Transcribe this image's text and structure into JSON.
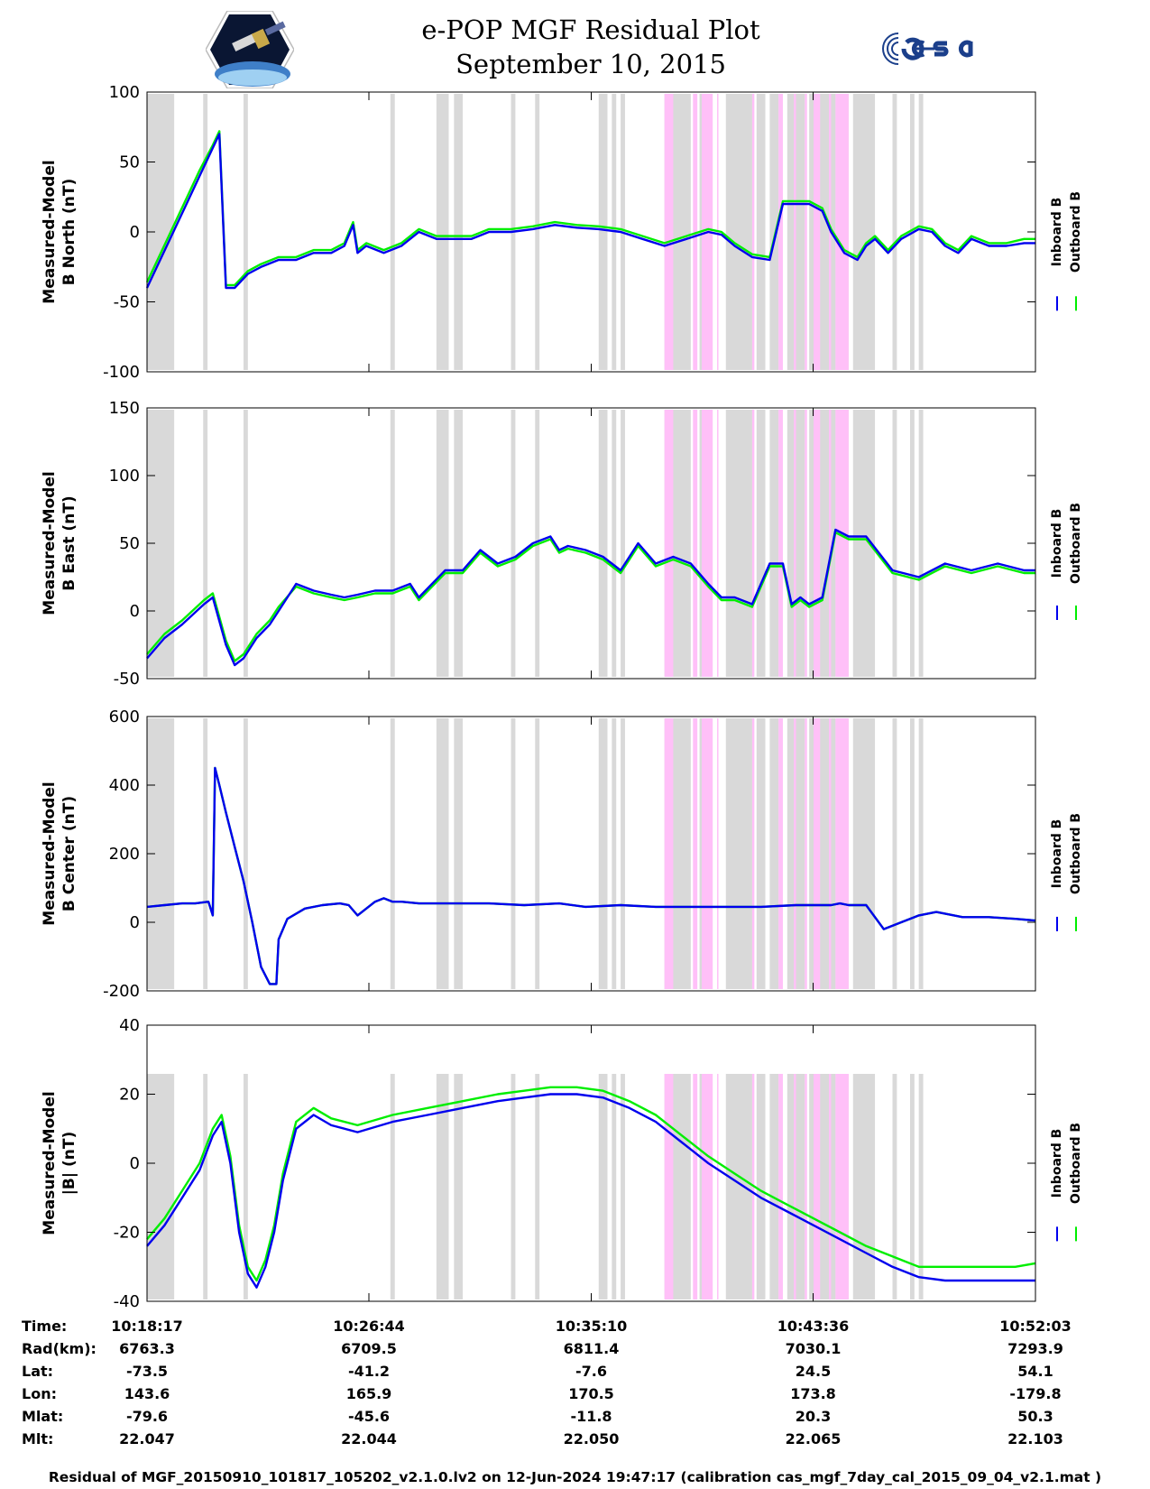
{
  "title_line1": "e-POP MGF Residual Plot",
  "title_line2": "September 10, 2015",
  "colors": {
    "inboard": "#0000ee",
    "outboard": "#00ee00",
    "gray_band": "#d9d9d9",
    "pink_band": "#ffc0f8"
  },
  "legend": {
    "inboard": "Inboard B",
    "outboard": "Outboard B"
  },
  "chart_data": [
    {
      "type": "line",
      "ylabel": [
        "Measured-Model",
        "B North (nT)"
      ],
      "ylim": [
        -100,
        100
      ],
      "yticks": [
        100,
        50,
        0,
        -50,
        -100
      ],
      "xlim": [
        0,
        2026
      ],
      "series": [
        {
          "name": "Inboard B",
          "x": [
            0,
            30,
            60,
            90,
            120,
            150,
            165,
            180,
            200,
            230,
            260,
            300,
            340,
            380,
            420,
            450,
            470,
            480,
            500,
            540,
            580,
            620,
            660,
            700,
            740,
            780,
            830,
            880,
            930,
            980,
            1030,
            1080,
            1130,
            1180,
            1230,
            1280,
            1310,
            1340,
            1380,
            1420,
            1450,
            1480,
            1510,
            1540,
            1560,
            1590,
            1620,
            1640,
            1660,
            1690,
            1720,
            1760,
            1790,
            1820,
            1850,
            1880,
            1920,
            1960,
            2000,
            2026
          ],
          "y": [
            -40,
            -20,
            0,
            20,
            40,
            60,
            70,
            -40,
            -40,
            -30,
            -25,
            -20,
            -20,
            -15,
            -15,
            -10,
            5,
            -15,
            -10,
            -15,
            -10,
            0,
            -5,
            -5,
            -5,
            0,
            0,
            2,
            5,
            3,
            2,
            0,
            -5,
            -10,
            -5,
            0,
            -2,
            -10,
            -18,
            -20,
            20,
            20,
            20,
            15,
            0,
            -15,
            -20,
            -10,
            -5,
            -15,
            -5,
            2,
            0,
            -10,
            -15,
            -5,
            -10,
            -10,
            -8,
            -8
          ]
        },
        {
          "name": "Outboard B",
          "x": [
            0,
            30,
            60,
            90,
            120,
            150,
            165,
            180,
            200,
            230,
            260,
            300,
            340,
            380,
            420,
            450,
            470,
            480,
            500,
            540,
            580,
            620,
            660,
            700,
            740,
            780,
            830,
            880,
            930,
            980,
            1030,
            1080,
            1130,
            1180,
            1230,
            1280,
            1310,
            1340,
            1380,
            1420,
            1450,
            1480,
            1510,
            1540,
            1560,
            1590,
            1620,
            1640,
            1660,
            1690,
            1720,
            1760,
            1790,
            1820,
            1850,
            1880,
            1920,
            1960,
            2000,
            2026
          ],
          "y": [
            -36,
            -16,
            4,
            24,
            44,
            62,
            72,
            -38,
            -38,
            -28,
            -23,
            -18,
            -18,
            -13,
            -13,
            -8,
            7,
            -13,
            -8,
            -13,
            -8,
            2,
            -3,
            -3,
            -3,
            2,
            2,
            4,
            7,
            5,
            4,
            2,
            -3,
            -8,
            -3,
            2,
            0,
            -8,
            -16,
            -18,
            22,
            22,
            22,
            17,
            2,
            -13,
            -18,
            -8,
            -3,
            -13,
            -3,
            4,
            2,
            -8,
            -13,
            -3,
            -8,
            -8,
            -5,
            -5
          ]
        }
      ]
    },
    {
      "type": "line",
      "ylabel": [
        "Measured-Model",
        "B East (nT)"
      ],
      "ylim": [
        -50,
        150
      ],
      "yticks": [
        150,
        100,
        50,
        0,
        -50
      ],
      "xlim": [
        0,
        2026
      ],
      "series": [
        {
          "name": "Inboard B",
          "x": [
            0,
            40,
            80,
            130,
            150,
            180,
            200,
            220,
            250,
            280,
            300,
            340,
            380,
            420,
            450,
            480,
            520,
            560,
            600,
            620,
            650,
            680,
            720,
            760,
            800,
            840,
            880,
            920,
            940,
            960,
            1000,
            1040,
            1080,
            1120,
            1160,
            1200,
            1240,
            1280,
            1310,
            1340,
            1380,
            1420,
            1450,
            1470,
            1490,
            1510,
            1540,
            1570,
            1600,
            1640,
            1700,
            1760,
            1820,
            1880,
            1940,
            2000,
            2026
          ],
          "y": [
            -35,
            -20,
            -10,
            5,
            10,
            -25,
            -40,
            -35,
            -20,
            -10,
            0,
            20,
            15,
            12,
            10,
            12,
            15,
            15,
            20,
            10,
            20,
            30,
            30,
            45,
            35,
            40,
            50,
            55,
            45,
            48,
            45,
            40,
            30,
            50,
            35,
            40,
            35,
            20,
            10,
            10,
            5,
            35,
            35,
            5,
            10,
            5,
            10,
            60,
            55,
            55,
            30,
            25,
            35,
            30,
            35,
            30,
            30
          ]
        },
        {
          "name": "Outboard B",
          "x": [
            0,
            40,
            80,
            130,
            150,
            180,
            200,
            220,
            250,
            280,
            300,
            340,
            380,
            420,
            450,
            480,
            520,
            560,
            600,
            620,
            650,
            680,
            720,
            760,
            800,
            840,
            880,
            920,
            940,
            960,
            1000,
            1040,
            1080,
            1120,
            1160,
            1200,
            1240,
            1280,
            1310,
            1340,
            1380,
            1420,
            1450,
            1470,
            1490,
            1510,
            1540,
            1570,
            1600,
            1640,
            1700,
            1760,
            1820,
            1880,
            1940,
            2000,
            2026
          ],
          "y": [
            -32,
            -17,
            -7,
            8,
            13,
            -22,
            -37,
            -32,
            -17,
            -7,
            3,
            18,
            13,
            10,
            8,
            10,
            13,
            13,
            18,
            8,
            18,
            28,
            28,
            43,
            33,
            38,
            48,
            53,
            43,
            46,
            43,
            38,
            28,
            48,
            33,
            38,
            33,
            18,
            8,
            8,
            3,
            33,
            33,
            3,
            8,
            3,
            8,
            58,
            53,
            53,
            28,
            23,
            33,
            28,
            33,
            28,
            28
          ]
        }
      ]
    },
    {
      "type": "line",
      "ylabel": [
        "Measured-Model",
        "B Center (nT)"
      ],
      "ylim": [
        -200,
        600
      ],
      "yticks": [
        600,
        400,
        200,
        0,
        -200
      ],
      "xlim": [
        0,
        2026
      ],
      "series": [
        {
          "name": "Inboard B",
          "x": [
            0,
            40,
            80,
            110,
            140,
            150,
            155,
            165,
            180,
            200,
            220,
            240,
            260,
            280,
            295,
            300,
            320,
            360,
            400,
            440,
            460,
            480,
            520,
            540,
            560,
            580,
            620,
            700,
            780,
            860,
            940,
            1000,
            1080,
            1160,
            1240,
            1320,
            1400,
            1480,
            1520,
            1540,
            1560,
            1580,
            1600,
            1640,
            1680,
            1720,
            1760,
            1800,
            1860,
            1920,
            1980,
            2026
          ],
          "y": [
            45,
            50,
            55,
            55,
            60,
            20,
            450,
            400,
            320,
            220,
            120,
            0,
            -130,
            -180,
            -180,
            -50,
            10,
            40,
            50,
            55,
            50,
            20,
            60,
            70,
            60,
            60,
            55,
            55,
            55,
            50,
            55,
            45,
            50,
            45,
            45,
            45,
            45,
            50,
            50,
            50,
            50,
            55,
            50,
            50,
            -20,
            0,
            20,
            30,
            15,
            15,
            10,
            5
          ]
        },
        {
          "name": "Outboard B",
          "x": [
            0,
            40,
            80,
            110,
            140,
            150,
            155,
            165,
            180,
            200,
            220,
            240,
            260,
            280,
            295,
            300,
            320,
            360,
            400,
            440,
            460,
            480,
            520,
            540,
            560,
            580,
            620,
            700,
            780,
            860,
            940,
            1000,
            1080,
            1160,
            1240,
            1320,
            1400,
            1480,
            1520,
            1540,
            1560,
            1580,
            1600,
            1640,
            1680,
            1720,
            1760,
            1800,
            1860,
            1920,
            1980,
            2026
          ],
          "y": [
            45,
            50,
            55,
            55,
            60,
            20,
            450,
            400,
            320,
            220,
            120,
            0,
            -130,
            -180,
            -180,
            -50,
            10,
            40,
            50,
            55,
            50,
            20,
            60,
            70,
            60,
            60,
            55,
            55,
            55,
            50,
            55,
            45,
            50,
            45,
            45,
            45,
            45,
            50,
            50,
            50,
            50,
            55,
            50,
            50,
            -20,
            0,
            20,
            30,
            15,
            15,
            10,
            5
          ]
        }
      ]
    },
    {
      "type": "line",
      "ylabel": [
        "Measured-Model",
        "|B| (nT)"
      ],
      "ylim": [
        -40,
        40
      ],
      "yticks": [
        40,
        20,
        0,
        -20,
        -40
      ],
      "xlim": [
        0,
        2026
      ],
      "series": [
        {
          "name": "Inboard B",
          "x": [
            0,
            40,
            80,
            120,
            150,
            170,
            190,
            210,
            230,
            250,
            270,
            290,
            310,
            340,
            380,
            420,
            480,
            560,
            640,
            720,
            800,
            860,
            920,
            980,
            1040,
            1100,
            1160,
            1220,
            1280,
            1340,
            1400,
            1460,
            1520,
            1580,
            1640,
            1700,
            1760,
            1820,
            1900,
            1980,
            2026
          ],
          "y": [
            -24,
            -18,
            -10,
            -2,
            8,
            12,
            0,
            -20,
            -32,
            -36,
            -30,
            -20,
            -5,
            10,
            14,
            11,
            9,
            12,
            14,
            16,
            18,
            19,
            20,
            20,
            19,
            16,
            12,
            6,
            0,
            -5,
            -10,
            -14,
            -18,
            -22,
            -26,
            -30,
            -33,
            -34,
            -34,
            -34,
            -34
          ]
        },
        {
          "name": "Outboard B",
          "x": [
            0,
            40,
            80,
            120,
            150,
            170,
            190,
            210,
            230,
            250,
            270,
            290,
            310,
            340,
            380,
            420,
            480,
            560,
            640,
            720,
            800,
            860,
            920,
            980,
            1040,
            1100,
            1160,
            1220,
            1280,
            1340,
            1400,
            1460,
            1520,
            1580,
            1640,
            1700,
            1760,
            1820,
            1900,
            1980,
            2026
          ],
          "y": [
            -22,
            -16,
            -8,
            0,
            10,
            14,
            2,
            -18,
            -30,
            -34,
            -28,
            -18,
            -3,
            12,
            16,
            13,
            11,
            14,
            16,
            18,
            20,
            21,
            22,
            22,
            21,
            18,
            14,
            8,
            2,
            -3,
            -8,
            -12,
            -16,
            -20,
            -24,
            -27,
            -30,
            -30,
            -30,
            -30,
            -29
          ]
        }
      ]
    }
  ],
  "bands": {
    "gray": [
      [
        0,
        62
      ],
      [
        128,
        138
      ],
      [
        220,
        230
      ],
      [
        555,
        565
      ],
      [
        660,
        688
      ],
      [
        700,
        720
      ],
      [
        830,
        840
      ],
      [
        885,
        895
      ],
      [
        1030,
        1050
      ],
      [
        1060,
        1070
      ],
      [
        1080,
        1090
      ],
      [
        1180,
        1240
      ],
      [
        1260,
        1276
      ],
      [
        1320,
        1380
      ],
      [
        1390,
        1410
      ],
      [
        1420,
        1440
      ],
      [
        1460,
        1500
      ],
      [
        1510,
        1520
      ],
      [
        1530,
        1570
      ],
      [
        1570,
        1600
      ],
      [
        1610,
        1660
      ],
      [
        1700,
        1710
      ],
      [
        1740,
        1750
      ],
      [
        1760,
        1770
      ]
    ],
    "pink": [
      [
        1180,
        1200
      ],
      [
        1245,
        1255
      ],
      [
        1265,
        1290
      ],
      [
        1300,
        1302
      ],
      [
        1380,
        1385
      ],
      [
        1440,
        1450
      ],
      [
        1475,
        1480
      ],
      [
        1500,
        1505
      ],
      [
        1520,
        1535
      ],
      [
        1555,
        1560
      ],
      [
        1570,
        1600
      ]
    ]
  },
  "time_axis": {
    "labels": [
      "Time:",
      "Rad(km):",
      "Lat:",
      "Lon:",
      "Mlat:",
      "Mlt:"
    ],
    "ticks": [
      {
        "x": 0,
        "values": [
          "10:18:17",
          "6763.3",
          "-73.5",
          "143.6",
          "-79.6",
          "22.047"
        ]
      },
      {
        "x": 506,
        "values": [
          "10:26:44",
          "6709.5",
          "-41.2",
          "165.9",
          "-45.6",
          "22.044"
        ]
      },
      {
        "x": 1013,
        "values": [
          "10:35:10",
          "6811.4",
          "-7.6",
          "170.5",
          "-11.8",
          "22.050"
        ]
      },
      {
        "x": 1519,
        "values": [
          "10:43:36",
          "7030.1",
          "24.5",
          "173.8",
          "20.3",
          "22.065"
        ]
      },
      {
        "x": 2026,
        "values": [
          "10:52:03",
          "7293.9",
          "54.1",
          "-179.8",
          "50.3",
          "22.103"
        ]
      }
    ]
  },
  "footer": "Residual of MGF_20150910_101817_105202_v2.1.0.lv2 on 12-Jun-2024 19:47:17 (calibration cas_mgf_7day_cal_2015_09_04_v2.1.mat )"
}
